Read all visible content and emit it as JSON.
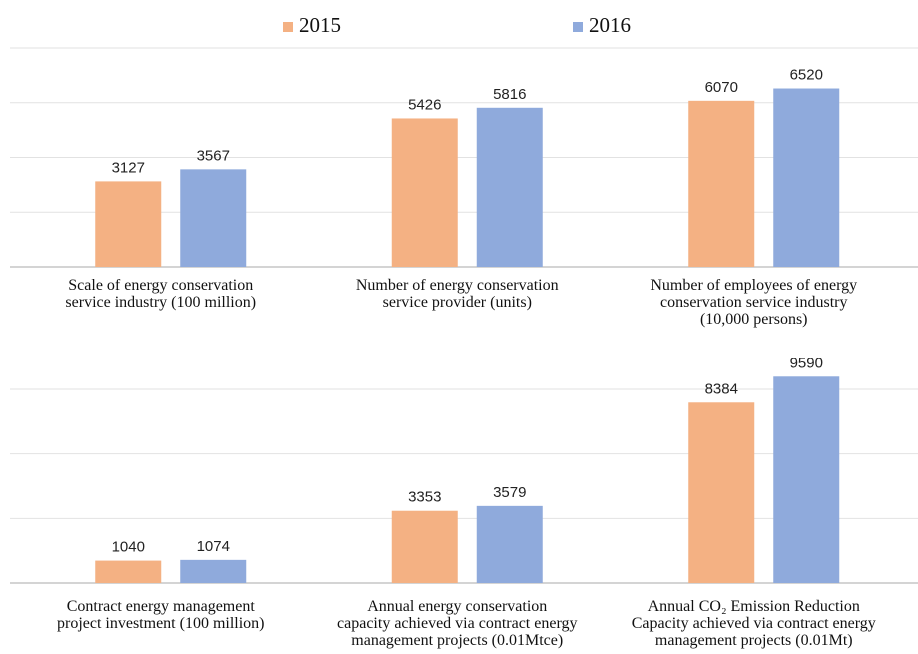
{
  "chart_data": [
    {
      "type": "bar",
      "categories": [
        "Scale of energy conservation\nservice industry  (100 million)",
        "Number of energy conservation\nservice provider  (units)",
        "Number of employees of energy\nconservation service industry\n(10,000 persons)"
      ],
      "series": [
        {
          "name": "2015",
          "color": "#f4b183",
          "values": [
            3127,
            5426,
            6070
          ]
        },
        {
          "name": "2016",
          "color": "#8faadc",
          "values": [
            3567,
            5816,
            6520
          ]
        }
      ],
      "ylim": [
        0,
        8000
      ],
      "yticks": [
        0,
        2000,
        4000,
        6000,
        8000
      ],
      "grid": true
    },
    {
      "type": "bar",
      "categories": [
        "Contract energy management\nproject investment  (100 million)",
        "Annual energy conservation\ncapacity achieved via contract energy\nmanagement projects (0.01Mtce)",
        "Annual CO₂ Emission Reduction\nCapacity achieved via contract energy\nmanagement projects (0.01Mt)"
      ],
      "series": [
        {
          "color": "#f4b183",
          "values": [
            1040,
            3353,
            8384
          ]
        },
        {
          "color": "#8faadc",
          "values": [
            1074,
            3579,
            9590
          ]
        }
      ],
      "ylim": [
        0,
        9000
      ],
      "yticks": [
        0,
        3000,
        6000,
        9000
      ],
      "grid": true
    }
  ]
}
